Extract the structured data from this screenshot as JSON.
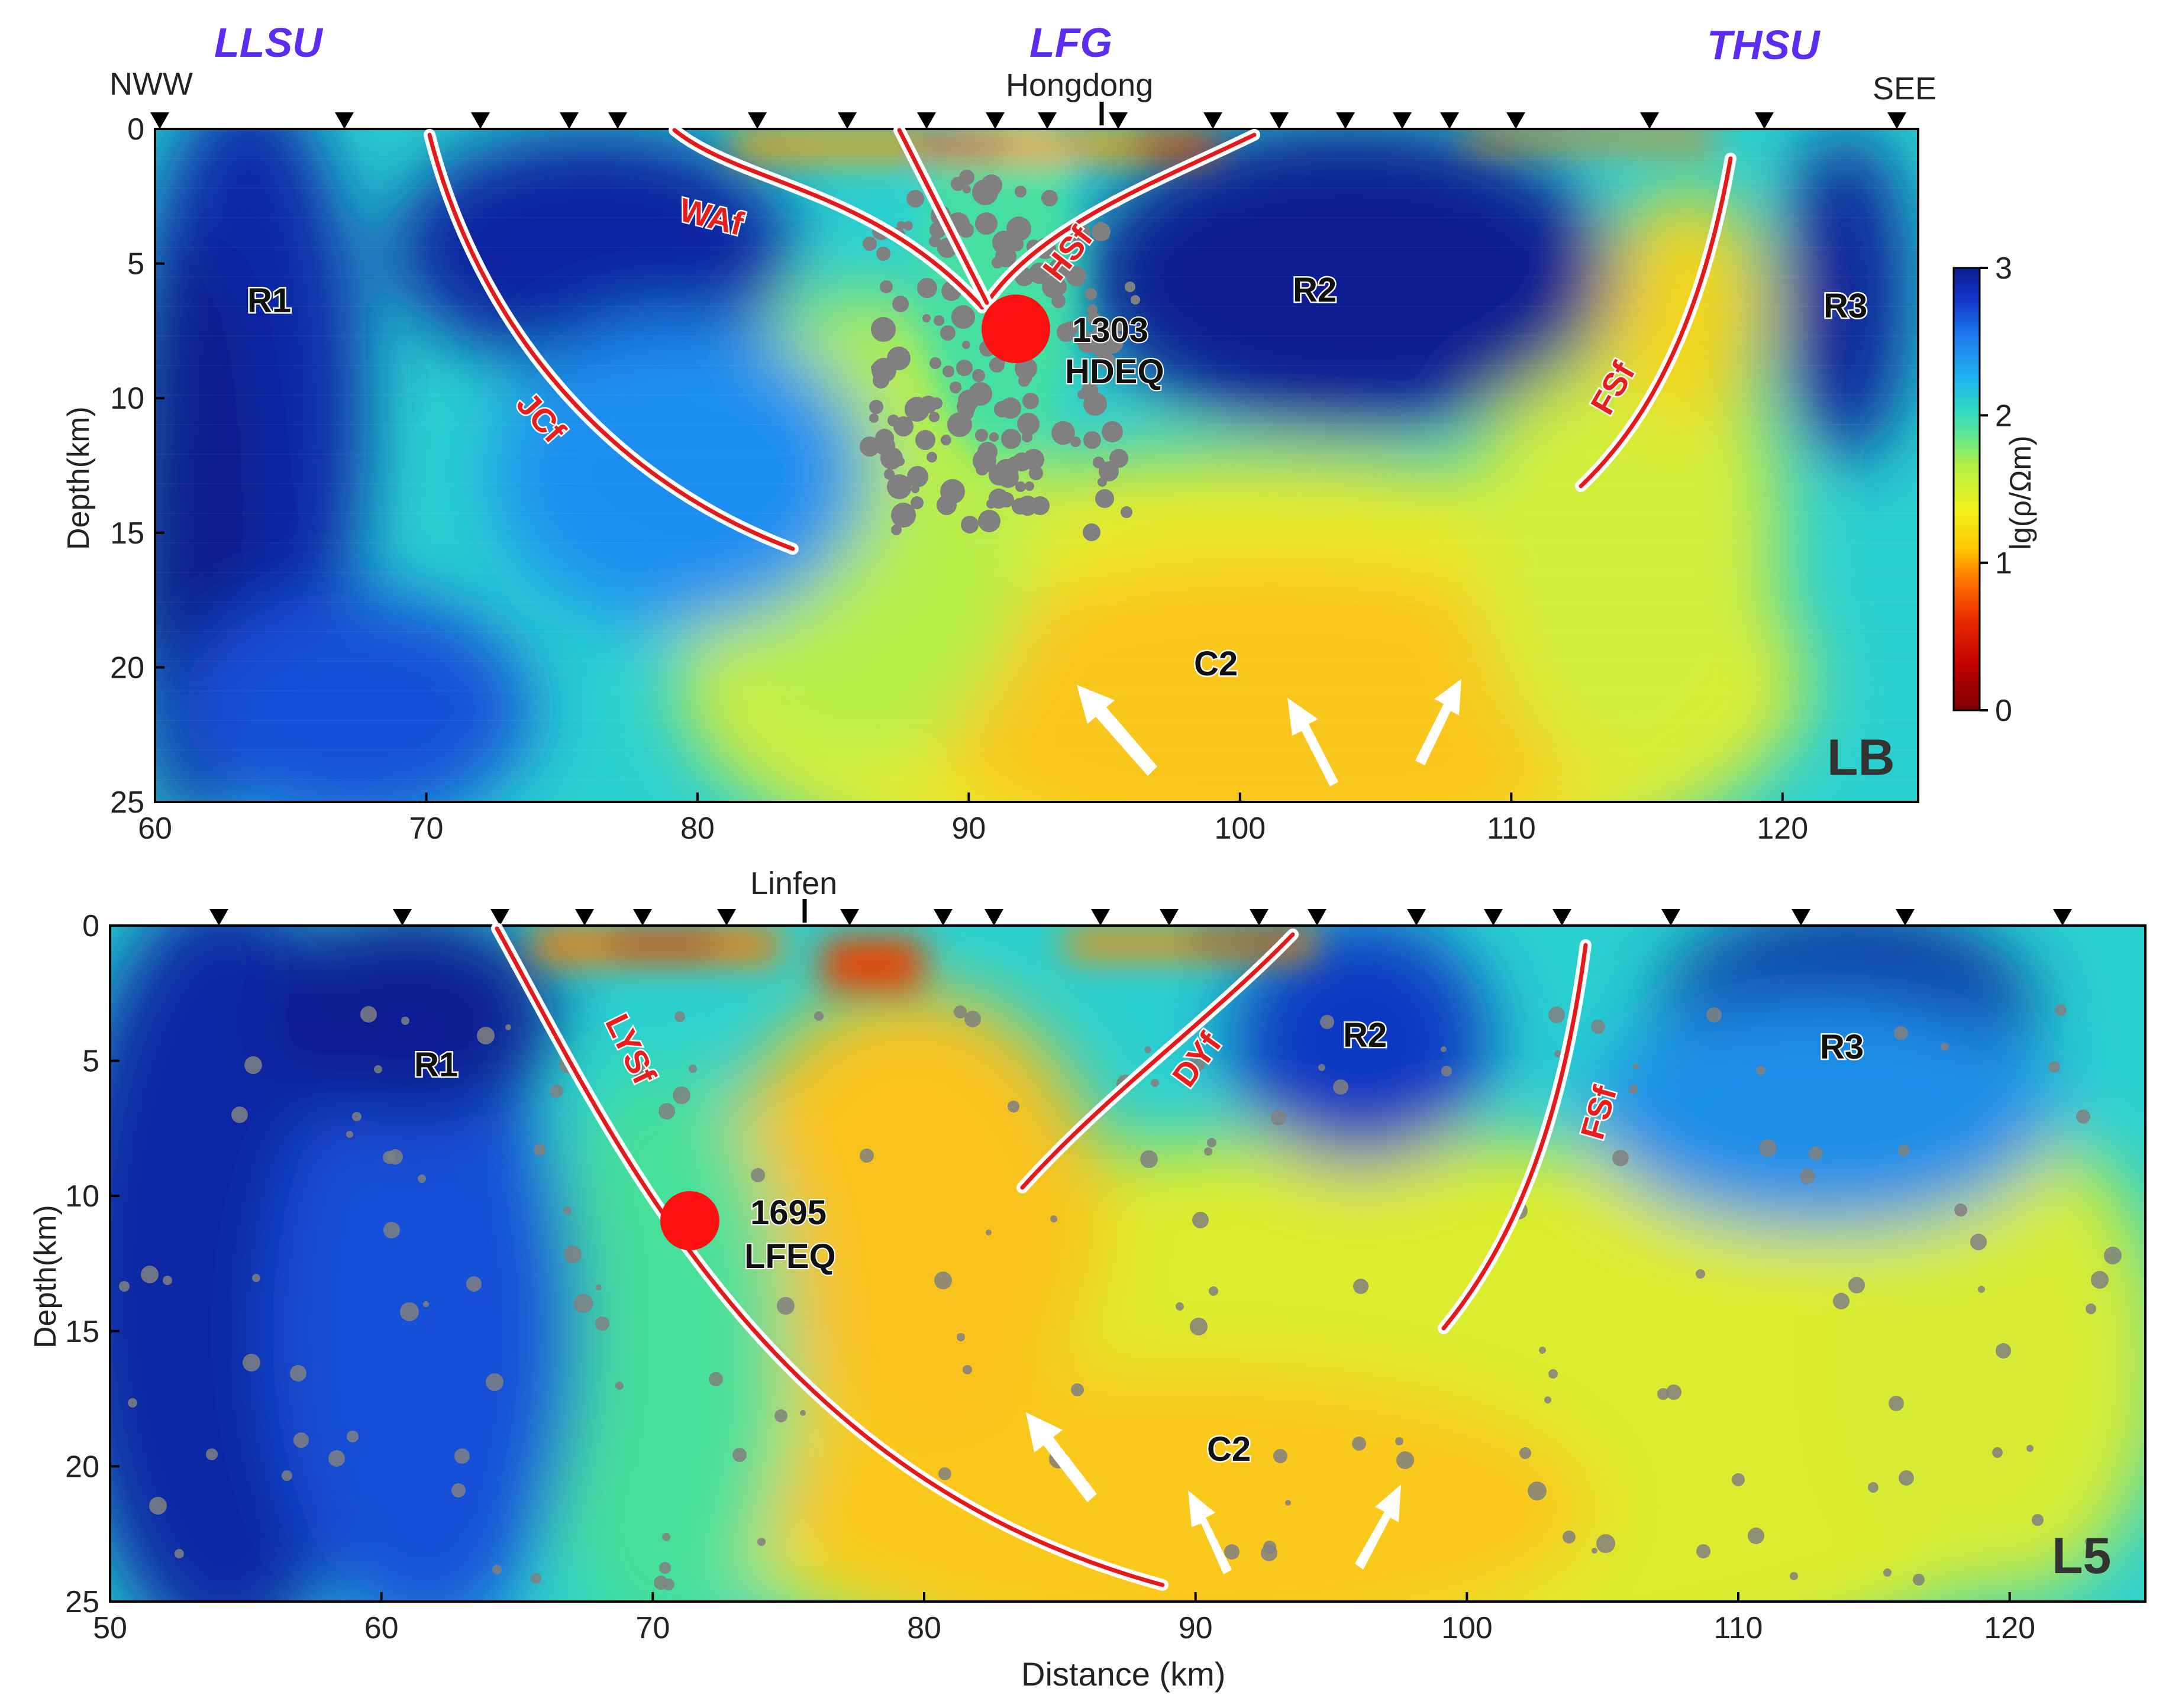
{
  "units": {
    "left": "LLSU",
    "center": "LFG",
    "right": "THSU"
  },
  "directions": {
    "left": "NWW",
    "right": "SEE"
  },
  "colorbar": {
    "label": "lg(ρ/Ωm)",
    "ticks": [
      "0",
      "1",
      "2",
      "3"
    ],
    "colors": [
      "#7a0000",
      "#b50000",
      "#e82800",
      "#ff7a00",
      "#ffc400",
      "#f2f21a",
      "#cdf03a",
      "#7dee73",
      "#2fd9c6",
      "#1eb4ee",
      "#1e8cf0",
      "#1446dc",
      "#0a1e8c"
    ]
  },
  "panels": [
    {
      "id": "LB",
      "panel_label": "LB",
      "town": "Hongdong",
      "x_range": [
        60,
        125
      ],
      "x_ticks": [
        "60",
        "70",
        "80",
        "90",
        "100",
        "110",
        "120"
      ],
      "y_ticks": [
        "0",
        "5",
        "10",
        "15",
        "20",
        "25"
      ],
      "ylabel": "Depth(km)",
      "faults": [
        "WAf",
        "HSf",
        "JCf",
        "FSf"
      ],
      "regions": [
        "R1",
        "R2",
        "R3",
        "C2"
      ],
      "earthquake": {
        "year": "1303",
        "name": "HDEQ",
        "distance_km": 91.5,
        "depth_km": 7.4
      }
    },
    {
      "id": "L5",
      "panel_label": "L5",
      "town": "Linfen",
      "x_range": [
        50,
        125
      ],
      "x_ticks": [
        "50",
        "60",
        "70",
        "80",
        "90",
        "100",
        "110",
        "120"
      ],
      "y_ticks": [
        "0",
        "5",
        "10",
        "15",
        "20",
        "25"
      ],
      "ylabel": "Depth(km)",
      "xlabel": "Distance (km)",
      "faults": [
        "LYSf",
        "DYf",
        "FSf"
      ],
      "regions": [
        "R1",
        "R2",
        "R3",
        "C2"
      ],
      "earthquake": {
        "year": "1695",
        "name": "LFEQ",
        "distance_km": 71.2,
        "depth_km": 10.8
      }
    }
  ]
}
